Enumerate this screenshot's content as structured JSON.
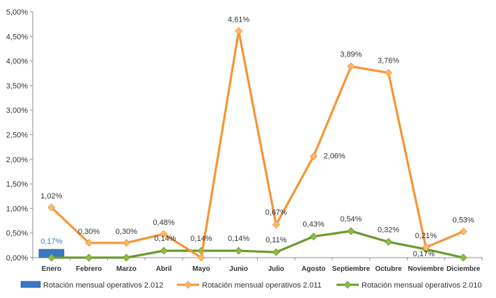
{
  "chart_data": {
    "type": "line",
    "categories": [
      "Enero",
      "Febrero",
      "Marzo",
      "Abril",
      "Mayo",
      "Junio",
      "Julio",
      "Agosto",
      "Septiembre",
      "Octubre",
      "Noviembre",
      "Diciembre"
    ],
    "ylim": [
      0,
      5.0
    ],
    "yticks": [
      "0,00%",
      "0,50%",
      "1,00%",
      "1,50%",
      "2,00%",
      "2,50%",
      "3,00%",
      "3,50%",
      "4,00%",
      "4,50%",
      "5,00%"
    ],
    "grid": false,
    "legend_position": "bottom",
    "series": [
      {
        "name": "Rotación mensual operativos 2.012",
        "kind": "bar",
        "color": "#3b76c4",
        "values": [
          0.17,
          null,
          null,
          null,
          null,
          null,
          null,
          null,
          null,
          null,
          null,
          null
        ],
        "labels": [
          "0,17%",
          null,
          null,
          null,
          null,
          null,
          null,
          null,
          null,
          null,
          null,
          null
        ]
      },
      {
        "name": "Rotación mensual operativos 2.011",
        "kind": "line",
        "color": "#f79433",
        "marker_color": "#fbb96b",
        "values": [
          1.02,
          0.3,
          0.3,
          0.48,
          0.0,
          4.61,
          0.67,
          2.06,
          3.89,
          3.76,
          0.21,
          0.53
        ],
        "labels": [
          "1,02%",
          "0,30%",
          "0,30%",
          "0,48%",
          null,
          "4,61%",
          "0,67%",
          "2,06%",
          "3,89%",
          "3,76%",
          "0,21%",
          "0,53%"
        ]
      },
      {
        "name": "Rotación mensual operativos 2.010",
        "kind": "line",
        "color": "#6b9a2f",
        "marker_color": "#8fbc45",
        "values": [
          0.0,
          0.0,
          0.0,
          0.14,
          0.14,
          0.14,
          0.11,
          0.43,
          0.54,
          0.32,
          0.17,
          0.0
        ],
        "labels": [
          null,
          null,
          null,
          "0,14%",
          "0,14%",
          "0,14%",
          "0,11%",
          "0,43%",
          "0,54%",
          "0,32%",
          "0,17%",
          null
        ]
      }
    ]
  }
}
